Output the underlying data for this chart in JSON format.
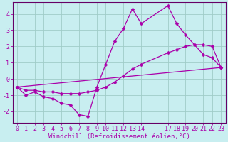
{
  "xlabel": "Windchill (Refroidissement éolien,°C)",
  "background_color": "#c8eef0",
  "grid_color": "#a0ccc8",
  "line_color": "#aa00aa",
  "xlim": [
    -0.5,
    23.5
  ],
  "ylim": [
    -2.7,
    4.7
  ],
  "xticks": [
    0,
    1,
    2,
    3,
    4,
    5,
    6,
    7,
    8,
    9,
    10,
    11,
    12,
    13,
    14,
    17,
    18,
    19,
    20,
    21,
    22,
    23
  ],
  "yticks": [
    -2,
    -1,
    0,
    1,
    2,
    3,
    4
  ],
  "line1_x": [
    0,
    1,
    2,
    3,
    4,
    5,
    6,
    7,
    8,
    9,
    10,
    11,
    12,
    13,
    14,
    17,
    18,
    19,
    20,
    21,
    22,
    23
  ],
  "line1_y": [
    -0.5,
    -1.0,
    -0.8,
    -1.1,
    -1.2,
    -1.5,
    -1.6,
    -2.2,
    -2.3,
    -0.5,
    0.9,
    2.3,
    3.1,
    4.3,
    3.4,
    4.5,
    3.4,
    2.7,
    2.1,
    1.5,
    1.3,
    0.7
  ],
  "line2_x": [
    0,
    1,
    2,
    3,
    4,
    5,
    6,
    7,
    8,
    9,
    10,
    11,
    12,
    13,
    14,
    17,
    18,
    19,
    20,
    21,
    22,
    23
  ],
  "line2_y": [
    -0.5,
    -0.7,
    -0.7,
    -0.8,
    -0.8,
    -0.9,
    -0.9,
    -0.9,
    -0.8,
    -0.7,
    -0.5,
    -0.2,
    0.2,
    0.6,
    0.9,
    1.6,
    1.8,
    2.0,
    2.1,
    2.1,
    2.0,
    0.7
  ],
  "line3_x": [
    0,
    23
  ],
  "line3_y": [
    -0.5,
    0.7
  ],
  "marker": "D",
  "markersize": 2.5,
  "linewidth": 0.9,
  "xlabel_fontsize": 6.5,
  "tick_fontsize": 6.0,
  "spine_color": "#660066"
}
